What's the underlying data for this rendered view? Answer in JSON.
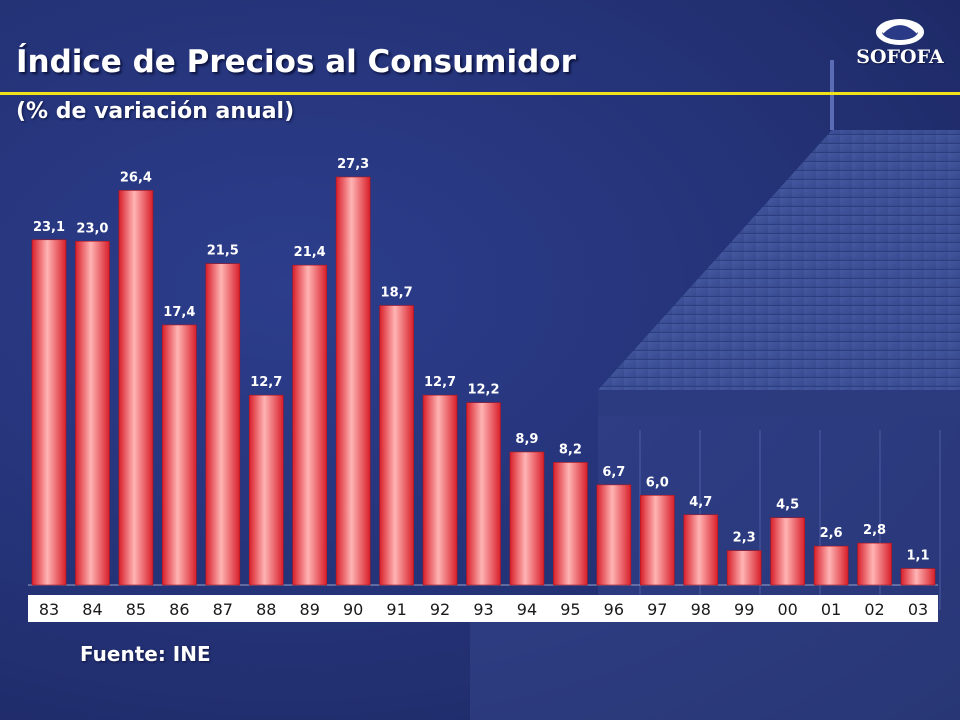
{
  "header": {
    "title": "Índice de Precios al Consumidor",
    "subtitle": "(% de variación anual)"
  },
  "logo": {
    "text": "SOFOFA"
  },
  "footer": {
    "source": "Fuente: INE"
  },
  "colors": {
    "bar": "#e8323a",
    "bar_light": "#ffb4b4",
    "rule": "#f2e21a",
    "axis_bg": "#ffffff"
  },
  "chart_data": {
    "type": "bar",
    "title": "Índice de Precios al Consumidor",
    "subtitle": "(% de variación anual)",
    "categories": [
      "83",
      "84",
      "85",
      "86",
      "87",
      "88",
      "89",
      "90",
      "91",
      "92",
      "93",
      "94",
      "95",
      "96",
      "97",
      "98",
      "99",
      "00",
      "01",
      "02",
      "03"
    ],
    "values": [
      23.1,
      23.0,
      26.4,
      17.4,
      21.5,
      12.7,
      21.4,
      27.3,
      18.7,
      12.7,
      12.2,
      8.9,
      8.2,
      6.7,
      6.0,
      4.7,
      2.3,
      4.5,
      2.6,
      2.8,
      1.1
    ],
    "value_labels": [
      "23,1",
      "23,0",
      "26,4",
      "17,4",
      "21,5",
      "12,7",
      "21,4",
      "27,3",
      "18,7",
      "12,7",
      "12,2",
      "8,9",
      "8,2",
      "6,7",
      "6,0",
      "4,7",
      "2,3",
      "4,5",
      "2,6",
      "2,8",
      "1,1"
    ],
    "xlabel": "",
    "ylabel": "",
    "ylim": [
      0,
      27.3
    ],
    "grid": false,
    "legend": "none"
  }
}
